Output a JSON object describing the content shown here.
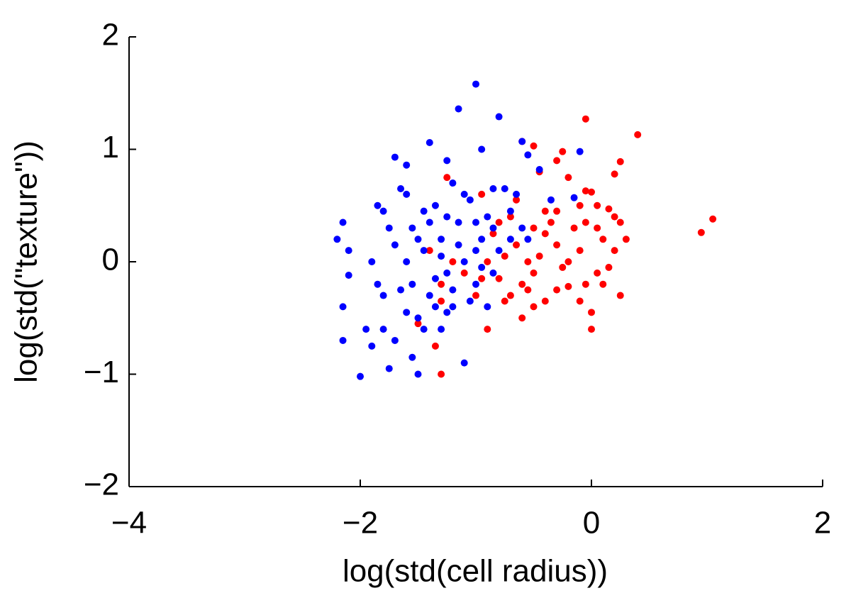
{
  "chart_data": {
    "type": "scatter",
    "x_label": "log(std(cell radius))",
    "y_label": "log(std(\"texture\"))",
    "xlim": [
      -4,
      2
    ],
    "ylim": [
      -2,
      2
    ],
    "xticks": [
      {
        "value": -4,
        "label": "−4"
      },
      {
        "value": -2,
        "label": "−2"
      },
      0,
      2
    ],
    "yticks": [
      {
        "value": -2,
        "label": "−2"
      },
      {
        "value": -1,
        "label": "−1"
      },
      0,
      1,
      2
    ],
    "grid": false,
    "series": [
      {
        "color": "#ff0000",
        "x": [
          -0.05,
          0.4,
          -0.6,
          -0.5,
          -0.25,
          0.25,
          0.2,
          -0.3,
          -0.45,
          -0.2,
          0.0,
          -0.05,
          -0.1,
          0.05,
          0.15,
          0.2,
          0.25,
          0.3,
          1.05,
          0.95,
          -1.3,
          -1.35,
          -1.5,
          -1.3,
          -0.9,
          -0.6,
          -0.5,
          -0.4,
          -0.3,
          -0.2,
          0.0,
          0.0,
          -0.05,
          0.05,
          0.15,
          0.25,
          0.2,
          0.1,
          -0.1,
          -0.2,
          -0.3,
          -0.4,
          -0.5,
          -0.55,
          -0.6,
          -0.7,
          -0.75,
          -0.8,
          -0.85,
          -0.9,
          -1.0,
          -1.1,
          -1.2,
          -1.3,
          -1.4,
          -0.65,
          -0.7,
          -0.45,
          -0.35,
          -0.15,
          -0.25,
          -0.55,
          -0.65,
          -0.8,
          -0.95,
          -1.25,
          -0.95,
          -0.75,
          0.1,
          -0.1,
          -0.05,
          0.05,
          -0.3,
          -0.4,
          -0.5
        ],
        "values": [
          1.27,
          1.13,
          1.07,
          1.03,
          0.98,
          0.89,
          0.78,
          0.9,
          0.8,
          0.75,
          0.62,
          0.63,
          0.5,
          0.5,
          0.47,
          0.4,
          0.35,
          0.2,
          0.38,
          0.26,
          -1.0,
          -0.75,
          -0.55,
          -0.35,
          -0.6,
          -0.5,
          -0.4,
          -0.35,
          -0.25,
          -0.22,
          -0.6,
          -0.45,
          -0.2,
          -0.1,
          -0.05,
          -0.3,
          0.1,
          0.2,
          0.1,
          0.0,
          0.15,
          0.25,
          0.3,
          0.0,
          -0.2,
          -0.3,
          0.05,
          -0.15,
          0.25,
          0.0,
          -0.3,
          -0.1,
          0.0,
          -0.2,
          0.1,
          0.55,
          0.4,
          0.05,
          0.35,
          0.3,
          -0.05,
          -0.25,
          0.15,
          0.35,
          0.6,
          0.75,
          -0.15,
          -0.35,
          -0.2,
          -0.35,
          0.35,
          0.3,
          0.45,
          0.45,
          -0.1
        ]
      },
      {
        "color": "#0000ff",
        "x": [
          -1.0,
          -1.15,
          -0.8,
          -1.4,
          -0.6,
          -0.1,
          -0.95,
          -1.7,
          -1.6,
          -1.25,
          -0.55,
          -0.45,
          -2.2,
          -2.15,
          -2.1,
          -2.15,
          -2.1,
          -2.15,
          -2.0,
          -1.9,
          -1.85,
          -1.9,
          -1.8,
          -1.75,
          -1.7,
          -1.65,
          -1.6,
          -1.55,
          -1.5,
          -1.5,
          -1.45,
          -1.4,
          -1.35,
          -1.3,
          -1.3,
          -1.25,
          -1.2,
          -1.2,
          -1.15,
          -1.1,
          -1.1,
          -1.05,
          -1.0,
          -0.95,
          -0.9,
          -0.85,
          -0.8,
          -0.75,
          -0.7,
          -0.65,
          -0.6,
          -0.55,
          -0.35,
          -0.15,
          -1.55,
          -1.6,
          -1.75,
          -1.85,
          -1.95,
          -1.35,
          -1.45,
          -1.25,
          -1.05,
          -0.95,
          -0.85,
          -1.7,
          -1.8,
          -1.4,
          -1.3,
          -1.15,
          -1.5,
          -1.55,
          -1.2,
          -0.9,
          -1.0,
          -1.65,
          -1.35,
          -1.45,
          -1.6,
          -1.8,
          -1.1,
          -0.7,
          -1.25,
          -1.0,
          -0.85
        ],
        "values": [
          1.58,
          1.36,
          1.29,
          1.06,
          1.07,
          0.98,
          1.0,
          0.93,
          0.86,
          0.9,
          0.95,
          0.82,
          0.2,
          0.35,
          0.1,
          -0.4,
          -0.12,
          -0.7,
          -1.02,
          -0.75,
          0.5,
          0.0,
          -0.6,
          -0.95,
          -0.7,
          -0.25,
          0.6,
          0.3,
          -0.5,
          -1.0,
          0.1,
          -0.3,
          0.5,
          -0.6,
          0.2,
          -0.1,
          0.7,
          -0.4,
          0.35,
          0.0,
          -0.9,
          0.55,
          -0.2,
          0.2,
          0.4,
          0.65,
          0.1,
          0.65,
          0.45,
          0.6,
          0.3,
          0.2,
          0.55,
          0.57,
          -0.85,
          -0.45,
          0.3,
          -0.2,
          -0.6,
          -0.15,
          0.45,
          -0.45,
          -0.35,
          -0.05,
          0.3,
          0.15,
          0.45,
          0.35,
          0.05,
          0.15,
          0.2,
          -0.2,
          -0.25,
          -0.4,
          0.35,
          0.65,
          -0.4,
          -0.6,
          0.0,
          -0.3,
          0.6,
          0.2,
          0.4,
          0.1,
          -0.1
        ]
      }
    ]
  }
}
